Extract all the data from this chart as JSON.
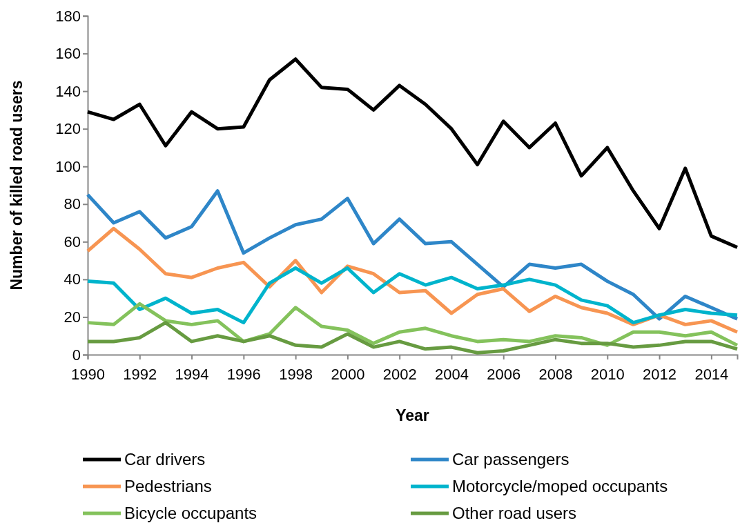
{
  "chart_data": {
    "type": "line",
    "xlabel": "Year",
    "ylabel": "Number of killed road users",
    "x": [
      1990,
      1991,
      1992,
      1993,
      1994,
      1995,
      1996,
      1997,
      1998,
      1999,
      2000,
      2001,
      2002,
      2003,
      2004,
      2005,
      2006,
      2007,
      2008,
      2009,
      2010,
      2011,
      2012,
      2013,
      2014,
      2015
    ],
    "xlim": [
      1990,
      2015
    ],
    "xticks": [
      1990,
      1992,
      1994,
      1996,
      1998,
      2000,
      2002,
      2004,
      2006,
      2008,
      2010,
      2012,
      2014
    ],
    "ylim": [
      0,
      180
    ],
    "yticks": [
      0,
      20,
      40,
      60,
      80,
      100,
      120,
      140,
      160,
      180
    ],
    "grid": false,
    "legend": "bottom",
    "marker": "none",
    "line_style": "solid",
    "series": [
      {
        "name": "Car drivers",
        "color": "#000000",
        "values": [
          129,
          125,
          133,
          111,
          129,
          120,
          121,
          146,
          157,
          142,
          141,
          130,
          143,
          133,
          120,
          101,
          124,
          110,
          123,
          95,
          110,
          87,
          67,
          99,
          63,
          57
        ]
      },
      {
        "name": "Car passengers",
        "color": "#2e86c8",
        "values": [
          85,
          70,
          76,
          62,
          68,
          87,
          54,
          62,
          69,
          72,
          83,
          59,
          72,
          59,
          60,
          48,
          36,
          48,
          46,
          48,
          39,
          32,
          19,
          31,
          25,
          19
        ]
      },
      {
        "name": "Pedestrians",
        "color": "#f79552",
        "values": [
          55,
          67,
          56,
          43,
          41,
          46,
          49,
          36,
          50,
          33,
          47,
          43,
          33,
          34,
          22,
          32,
          35,
          23,
          31,
          25,
          22,
          16,
          21,
          16,
          18,
          12
        ]
      },
      {
        "name": "Motorcycle/moped occupants",
        "color": "#00b4cc",
        "values": [
          39,
          38,
          24,
          30,
          22,
          24,
          17,
          38,
          46,
          38,
          46,
          33,
          43,
          37,
          41,
          35,
          37,
          40,
          37,
          29,
          26,
          17,
          21,
          24,
          22,
          21
        ]
      },
      {
        "name": "Bicycle occupants",
        "color": "#84c25c",
        "values": [
          17,
          16,
          27,
          18,
          16,
          18,
          7,
          11,
          25,
          15,
          13,
          6,
          12,
          14,
          10,
          7,
          8,
          7,
          10,
          9,
          5,
          12,
          12,
          10,
          12,
          5
        ]
      },
      {
        "name": "Other road users",
        "color": "#679b41",
        "values": [
          7,
          7,
          9,
          17,
          7,
          10,
          7,
          10,
          5,
          4,
          11,
          4,
          7,
          3,
          4,
          1,
          2,
          5,
          8,
          6,
          6,
          4,
          5,
          7,
          7,
          3
        ]
      }
    ]
  }
}
